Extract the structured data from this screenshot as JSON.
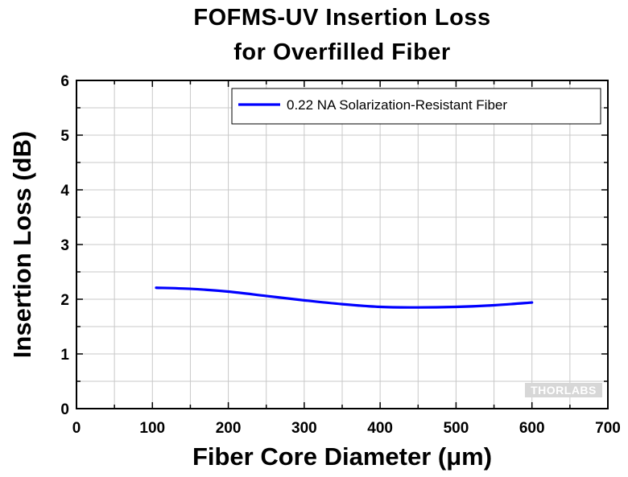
{
  "chart_data": {
    "type": "line",
    "title": "FOFMS-UV Insertion Loss",
    "subtitle": "for Overfilled Fiber",
    "xlabel": "Fiber Core Diameter (μm)",
    "ylabel": "Insertion Loss (dB)",
    "xlim": [
      0,
      700
    ],
    "ylim": [
      0,
      6
    ],
    "x_ticks": [
      "0",
      "100",
      "200",
      "300",
      "400",
      "500",
      "600",
      "700"
    ],
    "y_ticks": [
      "0",
      "1",
      "2",
      "3",
      "4",
      "5",
      "6"
    ],
    "grid": true,
    "legend_position": "top-right",
    "series": [
      {
        "name": "0.22 NA Solarization-Resistant Fiber",
        "color": "#0000ff",
        "x": [
          105,
          150,
          200,
          250,
          300,
          350,
          400,
          450,
          500,
          550,
          600
        ],
        "y": [
          2.21,
          2.19,
          2.14,
          2.06,
          1.98,
          1.91,
          1.86,
          1.85,
          1.86,
          1.89,
          1.94
        ]
      }
    ]
  },
  "watermark": "THORLABS"
}
